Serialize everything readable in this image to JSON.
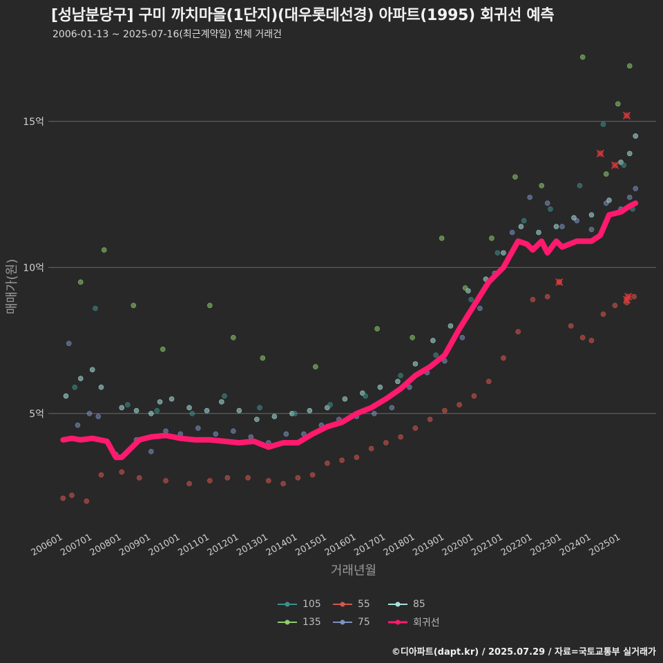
{
  "title": "[성남분당구] 구미 까치마을(1단지)(대우롯데선경) 아파트(1995) 회귀선 예측",
  "subtitle": "2006-01-13 ~ 2025-07-16(최근계약일) 전체 거래건",
  "caption": "©디아파트(dapt.kr) / 2025.07.29 / 자료=국토교통부 실거래가",
  "legend": [
    {
      "label": "105",
      "color": "#3f8f8c"
    },
    {
      "label": "55",
      "color": "#d9564e"
    },
    {
      "label": "85",
      "color": "#a9e2dd"
    },
    {
      "label": "135",
      "color": "#8fce6c"
    },
    {
      "label": "75",
      "color": "#7b93c2"
    },
    {
      "label": "회귀선",
      "color": "#ff1a6e"
    }
  ],
  "chart_data": {
    "type": "scatter",
    "title": "[성남분당구] 구미 까치마을(1단지)(대우롯데선경) 아파트(1995) 회귀선 예측",
    "subtitle": "2006-01-13 ~ 2025-07-16(최근계약일) 전체 거래건",
    "xlabel": "거래년월",
    "ylabel": "매매가(원)",
    "x_ticks": [
      "200601",
      "200701",
      "200801",
      "200901",
      "201001",
      "201101",
      "201201",
      "201301",
      "201401",
      "201501",
      "201601",
      "201701",
      "201801",
      "201901",
      "202001",
      "202101",
      "202201",
      "202301",
      "202401",
      "202501"
    ],
    "y_ticks": [
      {
        "value": 5,
        "label": "5억"
      },
      {
        "value": 10,
        "label": "10억"
      },
      {
        "value": 15,
        "label": "15억"
      }
    ],
    "xlim": [
      2005.5,
      2026.2
    ],
    "ylim": [
      1.0,
      17.5
    ],
    "grid": "horizontal",
    "legend_position": "bottom",
    "series": [
      {
        "name": "55",
        "color": "#d9564e",
        "x": [
          2006.0,
          2006.3,
          2006.8,
          2007.3,
          2008.0,
          2008.6,
          2009.5,
          2010.3,
          2011.0,
          2011.6,
          2012.3,
          2013.0,
          2013.5,
          2014.0,
          2014.5,
          2015.0,
          2015.5,
          2016.0,
          2016.5,
          2017.0,
          2017.5,
          2018.0,
          2018.5,
          2019.0,
          2019.5,
          2020.0,
          2020.5,
          2021.0,
          2021.5,
          2022.0,
          2022.5,
          2022.9,
          2023.3,
          2023.7,
          2024.0,
          2024.4,
          2024.8,
          2025.2,
          2025.45
        ],
        "y": [
          2.1,
          2.2,
          2.0,
          2.9,
          3.0,
          2.8,
          2.7,
          2.6,
          2.7,
          2.8,
          2.8,
          2.7,
          2.6,
          2.8,
          2.9,
          3.3,
          3.4,
          3.5,
          3.8,
          4.0,
          4.2,
          4.5,
          4.8,
          5.1,
          5.3,
          5.6,
          6.1,
          6.9,
          7.8,
          8.9,
          9.0,
          9.5,
          8.0,
          7.6,
          7.5,
          8.4,
          8.7,
          8.8,
          9.0
        ]
      },
      {
        "name": "75",
        "color": "#7b93c2",
        "x": [
          2006.2,
          2006.5,
          2006.9,
          2007.2,
          2007.8,
          2008.5,
          2009.0,
          2009.5,
          2010.0,
          2010.6,
          2011.2,
          2011.8,
          2012.4,
          2013.0,
          2013.6,
          2014.2,
          2014.8,
          2015.4,
          2016.0,
          2016.6,
          2017.2,
          2017.8,
          2018.4,
          2019.0,
          2019.6,
          2020.2,
          2020.7,
          2021.3,
          2021.9,
          2022.5,
          2023.0,
          2023.5,
          2024.0,
          2024.5,
          2025.0,
          2025.3,
          2025.5
        ],
        "y": [
          7.4,
          4.6,
          5.0,
          4.9,
          3.6,
          4.1,
          3.7,
          4.4,
          4.3,
          4.5,
          4.3,
          4.4,
          4.2,
          4.0,
          4.3,
          4.3,
          4.6,
          4.8,
          4.9,
          5.0,
          5.2,
          5.9,
          6.4,
          6.8,
          7.6,
          8.6,
          9.8,
          11.2,
          12.4,
          12.2,
          11.4,
          11.6,
          11.3,
          12.2,
          12.0,
          12.4,
          12.7
        ]
      },
      {
        "name": "85",
        "color": "#a9e2dd",
        "x": [
          2006.1,
          2006.6,
          2007.0,
          2007.3,
          2008.0,
          2008.5,
          2009.0,
          2009.3,
          2009.7,
          2010.3,
          2010.9,
          2011.4,
          2012.0,
          2012.6,
          2013.2,
          2013.8,
          2014.4,
          2015.0,
          2015.6,
          2016.2,
          2016.8,
          2017.4,
          2018.0,
          2018.6,
          2019.2,
          2019.8,
          2020.4,
          2021.0,
          2021.6,
          2022.2,
          2022.8,
          2023.4,
          2024.0,
          2024.6,
          2025.0,
          2025.3,
          2025.5
        ],
        "y": [
          5.6,
          6.2,
          6.5,
          5.9,
          5.2,
          5.1,
          5.0,
          5.4,
          5.5,
          5.2,
          5.1,
          5.4,
          5.1,
          4.8,
          4.9,
          5.0,
          5.1,
          5.2,
          5.5,
          5.7,
          5.9,
          6.1,
          6.7,
          7.5,
          8.0,
          9.2,
          9.6,
          10.5,
          11.4,
          11.2,
          11.4,
          11.7,
          11.8,
          12.3,
          13.6,
          13.9,
          14.5
        ]
      },
      {
        "name": "105",
        "color": "#3f8f8c",
        "x": [
          2006.4,
          2007.1,
          2008.2,
          2009.2,
          2010.4,
          2011.5,
          2012.7,
          2013.9,
          2015.1,
          2016.3,
          2017.5,
          2018.7,
          2019.9,
          2020.8,
          2021.7,
          2022.6,
          2023.6,
          2024.4,
          2025.1,
          2025.4
        ],
        "y": [
          5.9,
          8.6,
          5.3,
          5.1,
          5.0,
          5.6,
          5.2,
          5.0,
          5.3,
          5.6,
          6.3,
          7.0,
          8.9,
          10.5,
          11.6,
          12.0,
          12.8,
          14.9,
          13.5,
          12.0
        ]
      },
      {
        "name": "135",
        "color": "#8fce6c",
        "x": [
          2006.6,
          2007.4,
          2008.4,
          2009.4,
          2011.0,
          2011.8,
          2012.8,
          2014.6,
          2016.7,
          2017.9,
          2018.9,
          2019.7,
          2020.6,
          2021.4,
          2022.3,
          2023.7,
          2024.5,
          2024.9,
          2025.3
        ],
        "y": [
          9.5,
          10.6,
          8.7,
          7.2,
          8.7,
          7.6,
          6.9,
          6.6,
          7.9,
          7.6,
          11.0,
          9.3,
          11.0,
          13.1,
          12.8,
          17.2,
          13.2,
          15.6,
          16.9
        ]
      },
      {
        "name": "회귀선",
        "color": "#ff1a6e",
        "type": "line",
        "x": [
          2006.0,
          2006.3,
          2006.6,
          2007.0,
          2007.5,
          2007.8,
          2008.0,
          2008.3,
          2008.6,
          2009.0,
          2009.5,
          2010.0,
          2010.5,
          2011.0,
          2011.5,
          2012.0,
          2012.5,
          2013.0,
          2013.5,
          2014.0,
          2014.5,
          2015.0,
          2015.5,
          2016.0,
          2016.5,
          2017.0,
          2017.5,
          2018.0,
          2018.5,
          2019.0,
          2019.5,
          2020.0,
          2020.5,
          2021.0,
          2021.5,
          2021.8,
          2022.0,
          2022.3,
          2022.5,
          2022.8,
          2023.0,
          2023.5,
          2024.0,
          2024.3,
          2024.6,
          2025.0,
          2025.3,
          2025.5
        ],
        "y": [
          4.1,
          4.15,
          4.1,
          4.15,
          4.05,
          3.5,
          3.5,
          3.8,
          4.1,
          4.2,
          4.25,
          4.15,
          4.1,
          4.1,
          4.05,
          4.0,
          4.05,
          3.85,
          4.0,
          4.0,
          4.3,
          4.55,
          4.7,
          5.0,
          5.2,
          5.5,
          5.85,
          6.3,
          6.6,
          7.0,
          7.9,
          8.7,
          9.5,
          10.0,
          10.9,
          10.8,
          10.6,
          10.9,
          10.5,
          10.9,
          10.7,
          10.9,
          10.9,
          11.1,
          11.8,
          11.9,
          12.1,
          12.2
        ]
      }
    ],
    "markers": {
      "x": [
        2022.9,
        2024.3,
        2024.8,
        2025.2,
        2025.25,
        2025.2
      ],
      "y": [
        9.5,
        13.9,
        13.5,
        15.2,
        9.0,
        8.9
      ]
    }
  }
}
